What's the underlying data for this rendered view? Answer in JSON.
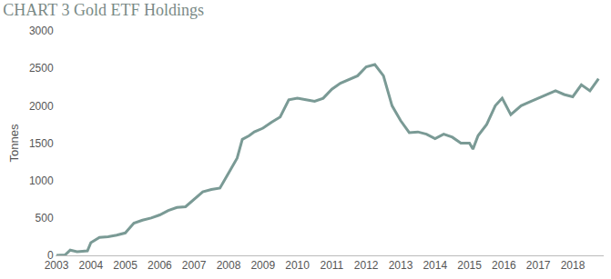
{
  "chart_data": {
    "type": "line",
    "title": "CHART 3 Gold ETF Holdings",
    "y_label": "Tonnes",
    "color": "#7a9a95",
    "grid": false,
    "x": [
      2003.0,
      2003.25,
      2003.4,
      2003.6,
      2003.9,
      2004.0,
      2004.25,
      2004.5,
      2004.75,
      2005.0,
      2005.25,
      2005.5,
      2005.75,
      2006.0,
      2006.25,
      2006.5,
      2006.75,
      2007.0,
      2007.25,
      2007.5,
      2007.75,
      2008.0,
      2008.25,
      2008.4,
      2008.6,
      2008.75,
      2009.0,
      2009.25,
      2009.5,
      2009.75,
      2010.0,
      2010.25,
      2010.5,
      2010.75,
      2011.0,
      2011.25,
      2011.5,
      2011.75,
      2012.0,
      2012.25,
      2012.5,
      2012.75,
      2013.0,
      2013.25,
      2013.5,
      2013.75,
      2014.0,
      2014.25,
      2014.5,
      2014.75,
      2015.0,
      2015.1,
      2015.25,
      2015.5,
      2015.75,
      2015.95,
      2016.2,
      2016.5,
      2016.75,
      2017.0,
      2017.25,
      2017.5,
      2017.75,
      2018.0,
      2018.25,
      2018.5,
      2018.75
    ],
    "values": [
      0,
      5,
      70,
      50,
      60,
      170,
      240,
      250,
      270,
      300,
      430,
      470,
      500,
      540,
      600,
      640,
      650,
      750,
      850,
      880,
      900,
      1100,
      1300,
      1550,
      1600,
      1650,
      1700,
      1780,
      1850,
      2080,
      2100,
      2080,
      2060,
      2100,
      2220,
      2300,
      2350,
      2400,
      2520,
      2550,
      2400,
      2000,
      1800,
      1640,
      1650,
      1620,
      1560,
      1620,
      1580,
      1500,
      1500,
      1420,
      1600,
      1750,
      2000,
      2100,
      1880,
      2000,
      2050,
      2100,
      2150,
      2200,
      2150,
      2120,
      2280,
      2200,
      2360
    ],
    "xlim": [
      2003,
      2018.9
    ],
    "xticks": [
      2003,
      2004,
      2005,
      2006,
      2007,
      2008,
      2009,
      2010,
      2011,
      2012,
      2013,
      2014,
      2015,
      2016,
      2017,
      2018
    ],
    "ylim": [
      0,
      3000
    ],
    "yticks": [
      0,
      500,
      1000,
      1500,
      2000,
      2500,
      3000
    ]
  }
}
